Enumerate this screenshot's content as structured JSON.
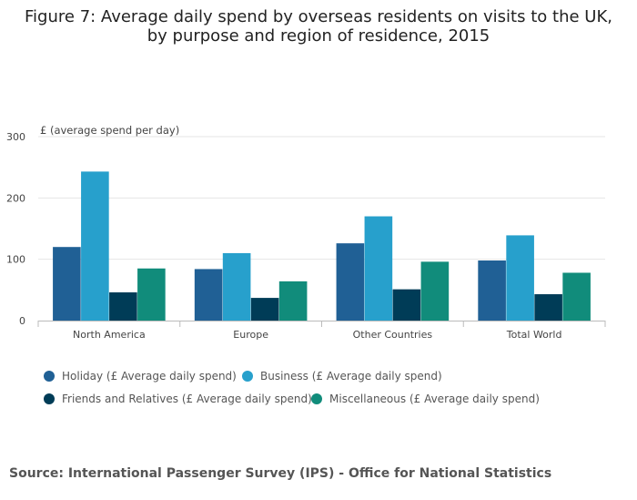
{
  "chart_data": {
    "type": "bar",
    "title": "Figure 7: Average daily spend by overseas residents on visits to the UK, by purpose and region of residence, 2015",
    "ylabel": "£ (average spend per day)",
    "xlabel": "",
    "ylim": [
      0,
      300
    ],
    "yticks": [
      0,
      100,
      200,
      300
    ],
    "grid": true,
    "legend_position": "bottom",
    "categories": [
      "North America",
      "Europe",
      "Other Countries",
      "Total World"
    ],
    "series": [
      {
        "name": "Holiday (£ Average daily spend)",
        "color": "#206095",
        "values": [
          120,
          84,
          126,
          98
        ]
      },
      {
        "name": "Business (£ Average daily spend)",
        "color": "#27a0cc",
        "values": [
          243,
          110,
          170,
          139
        ]
      },
      {
        "name": "Friends and Relatives (£ Average daily spend)",
        "color": "#003c57",
        "values": [
          46,
          37,
          51,
          43
        ]
      },
      {
        "name": "Miscellaneous (£ Average daily spend)",
        "color": "#118c7b",
        "values": [
          85,
          64,
          96,
          78
        ]
      }
    ]
  },
  "source": "Source: International Passenger Survey (IPS) - Office for National Statistics"
}
